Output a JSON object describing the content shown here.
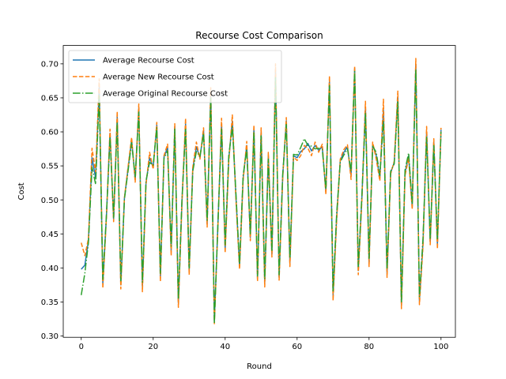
{
  "chart_data": {
    "type": "line",
    "title": "Recourse Cost Comparison",
    "xlabel": "Round",
    "ylabel": "Cost",
    "xlim": [
      -5,
      104
    ],
    "ylim": [
      0.298,
      0.727
    ],
    "xticks": [
      0,
      20,
      40,
      60,
      80,
      100
    ],
    "yticks": [
      0.3,
      0.35,
      0.4,
      0.45,
      0.5,
      0.55,
      0.6,
      0.65,
      0.7
    ],
    "ytick_labels": [
      "0.30",
      "0.35",
      "0.40",
      "0.45",
      "0.50",
      "0.55",
      "0.60",
      "0.65",
      "0.70"
    ],
    "grid": false,
    "legend_position": "top-left",
    "series": [
      {
        "name": "Average Recourse Cost",
        "color": "#1f77b4",
        "style": "solid",
        "values": [
          0.398,
          0.404,
          0.44,
          0.562,
          0.532,
          0.666,
          0.377,
          0.476,
          0.598,
          0.471,
          0.622,
          0.375,
          0.502,
          0.545,
          0.588,
          0.53,
          0.635,
          0.372,
          0.525,
          0.562,
          0.548,
          0.61,
          0.386,
          0.563,
          0.577,
          0.425,
          0.608,
          0.348,
          0.498,
          0.612,
          0.395,
          0.545,
          0.578,
          0.562,
          0.602,
          0.465,
          0.658,
          0.322,
          0.465,
          0.612,
          0.428,
          0.56,
          0.616,
          0.505,
          0.402,
          0.532,
          0.58,
          0.445,
          0.605,
          0.384,
          0.6,
          0.378,
          0.565,
          0.42,
          0.69,
          0.386,
          0.535,
          0.616,
          0.408,
          0.565,
          0.562,
          0.571,
          0.575,
          0.583,
          0.572,
          0.58,
          0.573,
          0.578,
          0.512,
          0.675,
          0.359,
          0.475,
          0.558,
          0.57,
          0.578,
          0.536,
          0.693,
          0.396,
          0.502,
          0.636,
          0.408,
          0.582,
          0.565,
          0.532,
          0.632,
          0.392,
          0.54,
          0.555,
          0.652,
          0.345,
          0.54,
          0.565,
          0.49,
          0.7,
          0.352,
          0.438,
          0.6,
          0.438,
          0.585,
          0.435,
          0.603
        ],
        "x_start": 0
      },
      {
        "name": "Average New Recourse Cost",
        "color": "#ff7f0e",
        "style": "dashed",
        "values": [
          0.437,
          0.418,
          0.443,
          0.576,
          0.541,
          0.678,
          0.37,
          0.474,
          0.604,
          0.468,
          0.63,
          0.369,
          0.503,
          0.548,
          0.592,
          0.526,
          0.641,
          0.365,
          0.522,
          0.57,
          0.545,
          0.614,
          0.38,
          0.565,
          0.582,
          0.418,
          0.612,
          0.342,
          0.495,
          0.62,
          0.39,
          0.548,
          0.585,
          0.56,
          0.606,
          0.46,
          0.665,
          0.318,
          0.462,
          0.62,
          0.422,
          0.555,
          0.625,
          0.5,
          0.398,
          0.528,
          0.586,
          0.44,
          0.61,
          0.38,
          0.606,
          0.372,
          0.57,
          0.416,
          0.7,
          0.382,
          0.532,
          0.621,
          0.402,
          0.563,
          0.558,
          0.565,
          0.58,
          0.576,
          0.565,
          0.585,
          0.57,
          0.582,
          0.508,
          0.682,
          0.352,
          0.47,
          0.56,
          0.574,
          0.581,
          0.53,
          0.697,
          0.39,
          0.498,
          0.645,
          0.402,
          0.585,
          0.56,
          0.528,
          0.648,
          0.386,
          0.538,
          0.557,
          0.66,
          0.34,
          0.536,
          0.561,
          0.486,
          0.708,
          0.346,
          0.432,
          0.608,
          0.434,
          0.59,
          0.428,
          0.606
        ],
        "x_start": 0
      },
      {
        "name": "Average Original Recourse Cost",
        "color": "#2ca02c",
        "style": "dashdot",
        "values": [
          0.36,
          0.392,
          0.437,
          0.548,
          0.523,
          0.654,
          0.383,
          0.478,
          0.592,
          0.474,
          0.614,
          0.381,
          0.501,
          0.542,
          0.584,
          0.534,
          0.629,
          0.379,
          0.528,
          0.555,
          0.551,
          0.606,
          0.392,
          0.561,
          0.572,
          0.432,
          0.604,
          0.354,
          0.501,
          0.604,
          0.4,
          0.542,
          0.571,
          0.564,
          0.598,
          0.47,
          0.651,
          0.318,
          0.468,
          0.604,
          0.434,
          0.565,
          0.607,
          0.51,
          0.406,
          0.536,
          0.574,
          0.45,
          0.6,
          0.388,
          0.594,
          0.384,
          0.56,
          0.424,
          0.68,
          0.39,
          0.538,
          0.611,
          0.414,
          0.567,
          0.566,
          0.577,
          0.59,
          0.58,
          0.579,
          0.575,
          0.576,
          0.574,
          0.516,
          0.668,
          0.366,
          0.48,
          0.556,
          0.566,
          0.575,
          0.542,
          0.689,
          0.402,
          0.506,
          0.627,
          0.414,
          0.579,
          0.57,
          0.536,
          0.616,
          0.398,
          0.542,
          0.553,
          0.644,
          0.35,
          0.544,
          0.569,
          0.494,
          0.692,
          0.358,
          0.444,
          0.592,
          0.442,
          0.58,
          0.442,
          0.6
        ],
        "x_start": 0
      }
    ]
  }
}
